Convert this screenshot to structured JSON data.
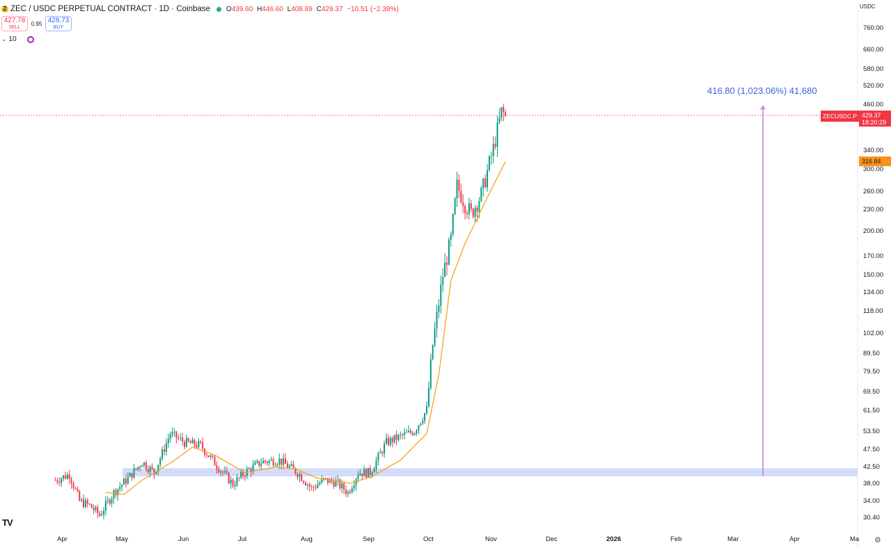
{
  "header": {
    "coin_icon": "zcash-coin-icon",
    "title": "ZEC / USDC PERPETUAL CONTRACT · 1D · Coinbase",
    "market_status_color": "#22ab94",
    "ohlc": [
      {
        "label": "O",
        "value": "439.60"
      },
      {
        "label": "H",
        "value": "446.60"
      },
      {
        "label": "L",
        "value": "408.89"
      },
      {
        "label": "C",
        "value": "429.37"
      }
    ],
    "change": "−10.51 (−2.39%)"
  },
  "trade": {
    "sell_price": "427.78",
    "sell_label": "SELL",
    "spread": "0.95",
    "buy_price": "428.73",
    "buy_label": "BUY"
  },
  "indicators": {
    "count": "10"
  },
  "axis": {
    "currency": "USDC",
    "y_ticks": [
      "760.00",
      "660.00",
      "580.00",
      "520.00",
      "460.00",
      "340.00",
      "300.00",
      "260.00",
      "230.00",
      "200.00",
      "170.00",
      "150.00",
      "134.00",
      "118.00",
      "102.00",
      "89.50",
      "79.50",
      "69.50",
      "61.50",
      "53.50",
      "47.50",
      "42.50",
      "38.00",
      "34.00",
      "30.40"
    ],
    "x_ticks": [
      {
        "label": "Apr"
      },
      {
        "label": "May"
      },
      {
        "label": "Jun"
      },
      {
        "label": "Jul"
      },
      {
        "label": "Aug"
      },
      {
        "label": "Sep"
      },
      {
        "label": "Oct"
      },
      {
        "label": "Nov"
      },
      {
        "label": "Dec"
      },
      {
        "label": "2026",
        "bold": true
      },
      {
        "label": "Feb"
      },
      {
        "label": "Mar"
      },
      {
        "label": "Apr"
      },
      {
        "label": "Ma"
      }
    ]
  },
  "price_line": {
    "symbol": "ZECUSDC.P",
    "price": "429.37",
    "countdown": "18:20:29",
    "color": "#f23645"
  },
  "ma_line": {
    "value": "316.84",
    "color": "#f7931a"
  },
  "measure": {
    "label": "416.80 (1,023.06%) 41,680",
    "color": "#c27ad6"
  },
  "support_zone": {
    "low": 40.0,
    "high": 42.2,
    "color": "#ccd6f8"
  },
  "chart_data": {
    "type": "candlestick",
    "symbol": "ZECUSDC.P",
    "timeframe": "1D",
    "scale": "log",
    "ylim": [
      28,
      880
    ],
    "colors": {
      "up": "#089981",
      "down": "#f23645",
      "ma": "#f7a21b"
    },
    "anchors": [
      {
        "date": "2025-03-28",
        "price": 39.0
      },
      {
        "date": "2025-04-04",
        "price": 40.5
      },
      {
        "date": "2025-04-09",
        "price": 34.0
      },
      {
        "date": "2025-04-14",
        "price": 33.0
      },
      {
        "date": "2025-04-19",
        "price": 31.0
      },
      {
        "date": "2025-04-26",
        "price": 36.0
      },
      {
        "date": "2025-05-04",
        "price": 40.0
      },
      {
        "date": "2025-05-10",
        "price": 44.0
      },
      {
        "date": "2025-05-16",
        "price": 41.0
      },
      {
        "date": "2025-05-24",
        "price": 53.0
      },
      {
        "date": "2025-05-31",
        "price": 50.0
      },
      {
        "date": "2025-06-08",
        "price": 49.0
      },
      {
        "date": "2025-06-16",
        "price": 43.0
      },
      {
        "date": "2025-06-24",
        "price": 38.0
      },
      {
        "date": "2025-06-30",
        "price": 41.0
      },
      {
        "date": "2025-07-08",
        "price": 44.0
      },
      {
        "date": "2025-07-17",
        "price": 44.5
      },
      {
        "date": "2025-07-26",
        "price": 41.0
      },
      {
        "date": "2025-08-02",
        "price": 37.0
      },
      {
        "date": "2025-08-08",
        "price": 39.0
      },
      {
        "date": "2025-08-14",
        "price": 38.5
      },
      {
        "date": "2025-08-20",
        "price": 36.0
      },
      {
        "date": "2025-08-25",
        "price": 41.0
      },
      {
        "date": "2025-08-31",
        "price": 41.0
      },
      {
        "date": "2025-09-08",
        "price": 50.0
      },
      {
        "date": "2025-09-15",
        "price": 52.0
      },
      {
        "date": "2025-09-22",
        "price": 54.0
      },
      {
        "date": "2025-09-28",
        "price": 62.0
      },
      {
        "date": "2025-10-01",
        "price": 95.0
      },
      {
        "date": "2025-10-06",
        "price": 150.0
      },
      {
        "date": "2025-10-10",
        "price": 190.0
      },
      {
        "date": "2025-10-13",
        "price": 270.0
      },
      {
        "date": "2025-10-17",
        "price": 240.0
      },
      {
        "date": "2025-10-20",
        "price": 225.0
      },
      {
        "date": "2025-10-25",
        "price": 255.0
      },
      {
        "date": "2025-10-31",
        "price": 345.0
      },
      {
        "date": "2025-11-02",
        "price": 390.0
      },
      {
        "date": "2025-11-04",
        "price": 440.0
      },
      {
        "date": "2025-11-06",
        "price": 429.37
      }
    ],
    "moving_average": [
      {
        "date": "2025-04-22",
        "price": 36.0
      },
      {
        "date": "2025-05-01",
        "price": 35.5
      },
      {
        "date": "2025-05-10",
        "price": 39.0
      },
      {
        "date": "2025-05-25",
        "price": 44.0
      },
      {
        "date": "2025-06-04",
        "price": 48.5
      },
      {
        "date": "2025-06-15",
        "price": 46.0
      },
      {
        "date": "2025-06-30",
        "price": 41.0
      },
      {
        "date": "2025-07-15",
        "price": 42.5
      },
      {
        "date": "2025-07-25",
        "price": 42.0
      },
      {
        "date": "2025-08-05",
        "price": 39.5
      },
      {
        "date": "2025-08-21",
        "price": 38.2
      },
      {
        "date": "2025-09-01",
        "price": 40.0
      },
      {
        "date": "2025-09-15",
        "price": 44.5
      },
      {
        "date": "2025-09-28",
        "price": 53.0
      },
      {
        "date": "2025-10-04",
        "price": 78.0
      },
      {
        "date": "2025-10-10",
        "price": 145.0
      },
      {
        "date": "2025-10-17",
        "price": 185.0
      },
      {
        "date": "2025-10-28",
        "price": 250.0
      },
      {
        "date": "2025-11-06",
        "price": 316.84
      }
    ]
  }
}
